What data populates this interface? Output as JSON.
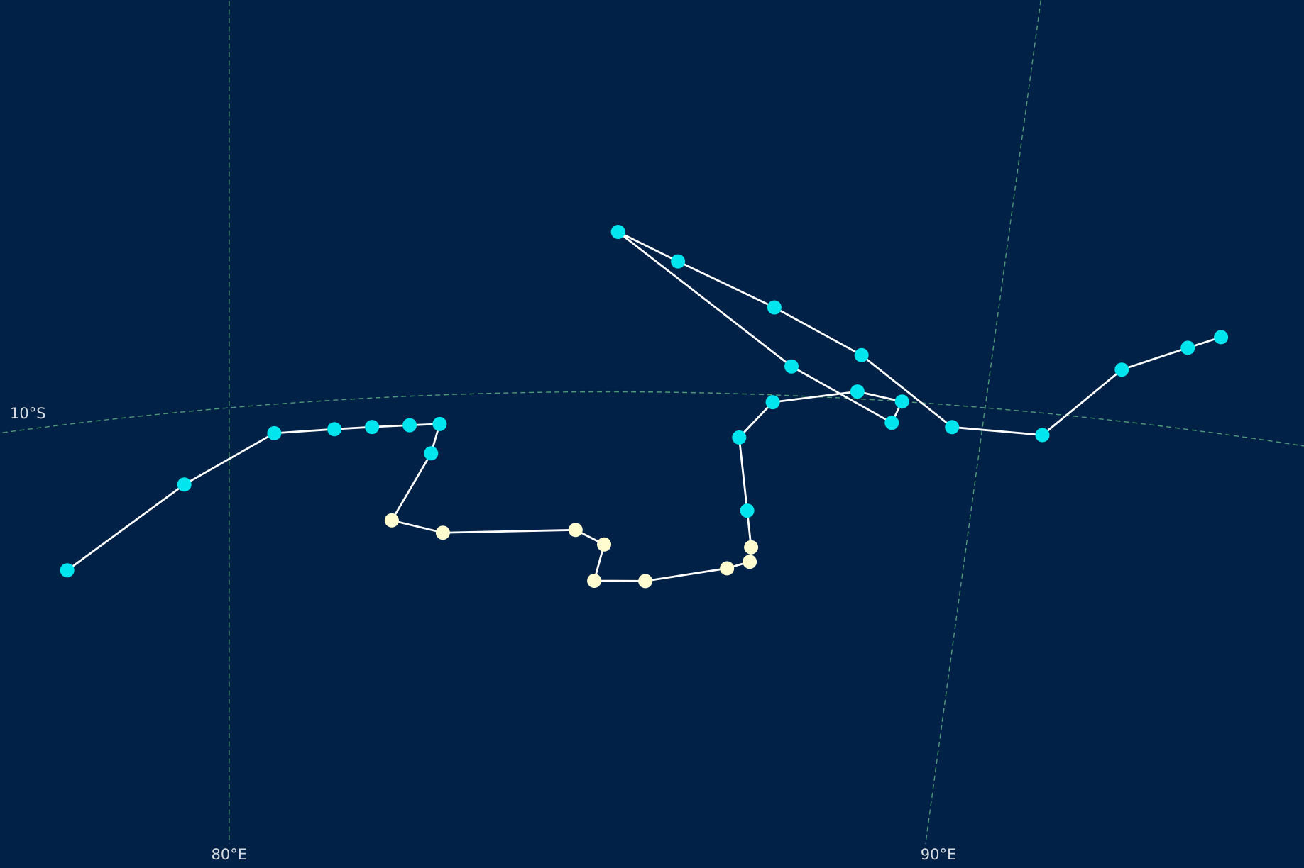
{
  "map": {
    "background_color": "#012246",
    "gridline_color": "#4f9a7a",
    "label_color": "#d6dbe2",
    "track_line_color": "#ffffff",
    "gridlines": {
      "latitude": [
        {
          "label": "10°S",
          "value": -10
        }
      ],
      "longitude": [
        {
          "label": "80°E",
          "value": 80
        },
        {
          "label": "90°E",
          "value": 90
        }
      ]
    },
    "point_categories": [
      {
        "key": "cyan",
        "color": "#00e5ee"
      },
      {
        "key": "cream",
        "color": "#fffdd0"
      }
    ],
    "track": [
      {
        "lon": 77.8,
        "lat": -12.0,
        "cat": "cyan"
      },
      {
        "lon": 79.4,
        "lat": -11.0,
        "cat": "cyan"
      },
      {
        "lon": 80.6,
        "lat": -10.4,
        "cat": "cyan"
      },
      {
        "lon": 81.4,
        "lat": -10.4,
        "cat": "cyan"
      },
      {
        "lon": 81.9,
        "lat": -10.4,
        "cat": "cyan"
      },
      {
        "lon": 82.4,
        "lat": -10.4,
        "cat": "cyan"
      },
      {
        "lon": 82.8,
        "lat": -10.4,
        "cat": "cyan"
      },
      {
        "lon": 82.7,
        "lat": -10.8,
        "cat": "cyan"
      },
      {
        "lon": 82.2,
        "lat": -11.7,
        "cat": "cream"
      },
      {
        "lon": 82.9,
        "lat": -11.9,
        "cat": "cream"
      },
      {
        "lon": 84.7,
        "lat": -11.9,
        "cat": "cream"
      },
      {
        "lon": 85.1,
        "lat": -12.1,
        "cat": "cream"
      },
      {
        "lon": 85.0,
        "lat": -12.6,
        "cat": "cream"
      },
      {
        "lon": 85.7,
        "lat": -12.6,
        "cat": "cream"
      },
      {
        "lon": 86.8,
        "lat": -12.4,
        "cat": "cream"
      },
      {
        "lon": 87.1,
        "lat": -12.3,
        "cat": "cream"
      },
      {
        "lon": 87.1,
        "lat": -12.1,
        "cat": "cream"
      },
      {
        "lon": 87.0,
        "lat": -11.6,
        "cat": "cyan"
      },
      {
        "lon": 86.8,
        "lat": -10.6,
        "cat": "cyan"
      },
      {
        "lon": 87.2,
        "lat": -10.1,
        "cat": "cyan"
      },
      {
        "lon": 88.3,
        "lat": -9.9,
        "cat": "cyan"
      },
      {
        "lon": 88.9,
        "lat": -10.0,
        "cat": "cyan"
      },
      {
        "lon": 88.8,
        "lat": -10.3,
        "cat": "cyan"
      },
      {
        "lon": 87.4,
        "lat": -9.6,
        "cat": "cyan"
      },
      {
        "lon": 85.0,
        "lat": -7.8,
        "cat": "cyan"
      },
      {
        "lon": 85.8,
        "lat": -8.2,
        "cat": "cyan"
      },
      {
        "lon": 87.1,
        "lat": -8.8,
        "cat": "cyan"
      },
      {
        "lon": 88.3,
        "lat": -9.4,
        "cat": "cyan"
      },
      {
        "lon": 89.6,
        "lat": -10.3,
        "cat": "cyan"
      },
      {
        "lon": 90.8,
        "lat": -10.3,
        "cat": "cyan"
      },
      {
        "lon": 91.7,
        "lat": -9.3,
        "cat": "cyan"
      },
      {
        "lon": 92.5,
        "lat": -8.9,
        "cat": "cyan"
      },
      {
        "lon": 92.9,
        "lat": -8.7,
        "cat": "cyan"
      }
    ]
  }
}
